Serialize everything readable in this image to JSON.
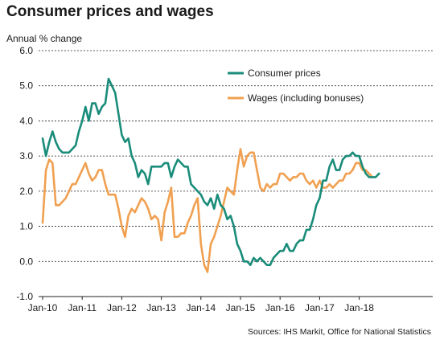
{
  "chart_data": {
    "type": "line",
    "title": "Consumer prices and wages",
    "ylabel": "Annual % change",
    "ylim": [
      -1.0,
      6.0
    ],
    "yticks": [
      "6.0",
      "5.0",
      "4.0",
      "3.0",
      "2.0",
      "1.0",
      "0.0",
      "-1.0"
    ],
    "xticks": [
      "Jan-10",
      "Jan-11",
      "Jan-12",
      "Jan-13",
      "Jan-14",
      "Jan-15",
      "Jan-16",
      "Jan-17",
      "Jan-18"
    ],
    "grid": "horizontal dashed",
    "legend_position": "top-center",
    "source": "Sources: IHS Markit, Office for National Statistics",
    "series": [
      {
        "name": "Consumer prices",
        "color": "#1a8c7a",
        "values": [
          3.5,
          3.0,
          3.4,
          3.7,
          3.4,
          3.2,
          3.1,
          3.1,
          3.1,
          3.2,
          3.3,
          3.7,
          4.0,
          4.4,
          4.0,
          4.5,
          4.5,
          4.2,
          4.4,
          4.5,
          5.2,
          5.0,
          4.8,
          4.2,
          3.6,
          3.4,
          3.5,
          3.0,
          2.8,
          2.4,
          2.6,
          2.5,
          2.2,
          2.7,
          2.7,
          2.7,
          2.7,
          2.8,
          2.8,
          2.4,
          2.7,
          2.9,
          2.8,
          2.7,
          2.7,
          2.2,
          2.1,
          2.0,
          1.9,
          1.7,
          1.6,
          1.8,
          1.5,
          1.9,
          1.6,
          1.5,
          1.2,
          1.3,
          1.0,
          0.5,
          0.3,
          0.0,
          0.0,
          -0.1,
          0.1,
          0.0,
          0.1,
          0.0,
          -0.1,
          -0.1,
          0.1,
          0.2,
          0.3,
          0.3,
          0.5,
          0.3,
          0.3,
          0.5,
          0.6,
          0.6,
          0.9,
          0.9,
          1.2,
          1.6,
          1.8,
          2.3,
          2.3,
          2.7,
          2.9,
          2.6,
          2.6,
          2.9,
          3.0,
          3.0,
          3.1,
          3.0,
          3.0,
          2.7,
          2.5,
          2.4,
          2.4,
          2.4,
          2.5
        ]
      },
      {
        "name": "Wages (including bonuses)",
        "color": "#f0a050",
        "values": [
          1.1,
          2.6,
          2.9,
          2.8,
          1.6,
          1.6,
          1.7,
          1.8,
          2.0,
          2.2,
          2.2,
          2.4,
          2.6,
          2.8,
          2.5,
          2.3,
          2.4,
          2.6,
          2.6,
          2.2,
          1.9,
          1.9,
          1.9,
          1.5,
          1.0,
          0.7,
          1.3,
          1.5,
          1.4,
          1.6,
          1.8,
          1.7,
          1.5,
          1.2,
          1.3,
          1.2,
          0.6,
          1.4,
          1.7,
          2.1,
          0.7,
          0.7,
          0.8,
          0.8,
          1.1,
          1.3,
          1.6,
          1.8,
          0.5,
          -0.1,
          -0.3,
          0.5,
          0.7,
          1.0,
          1.3,
          1.7,
          2.1,
          2.0,
          1.9,
          2.6,
          3.2,
          2.7,
          3.0,
          3.1,
          3.1,
          2.6,
          2.1,
          2.0,
          2.2,
          2.1,
          2.2,
          2.2,
          2.5,
          2.5,
          2.4,
          2.3,
          2.4,
          2.4,
          2.5,
          2.5,
          2.3,
          2.2,
          2.3,
          2.1,
          2.3,
          2.1,
          2.1,
          2.2,
          2.1,
          2.2,
          2.3,
          2.3,
          2.5,
          2.5,
          2.6,
          2.8,
          2.8,
          2.6,
          2.6,
          2.5,
          2.4
        ]
      }
    ]
  }
}
